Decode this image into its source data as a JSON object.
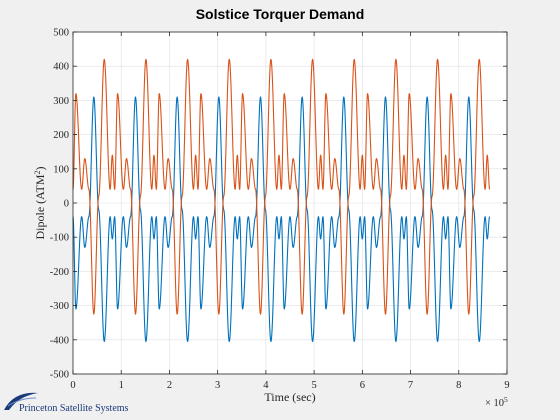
{
  "chart_data": {
    "type": "line",
    "title": "Solstice Torquer Demand",
    "xlabel": "Time (sec)",
    "ylabel_main": "Dipole (ATM",
    "ylabel_sup": "2",
    "ylabel_end": ")",
    "x_exponent_base": "× 10",
    "x_exponent_power": "5",
    "xlim": [
      0,
      9
    ],
    "ylim": [
      -500,
      500
    ],
    "x_ticks": [
      0,
      1,
      2,
      3,
      4,
      5,
      6,
      7,
      8,
      9
    ],
    "y_ticks": [
      -500,
      -400,
      -300,
      -200,
      -100,
      0,
      100,
      200,
      300,
      400,
      500
    ],
    "grid": true,
    "x_end": 8.64,
    "period": 0.864,
    "series": [
      {
        "color": "#0072bd",
        "keyframes": [
          {
            "t": 0.0,
            "v": -40
          },
          {
            "t": 0.06,
            "v": -310
          },
          {
            "t": 0.18,
            "v": -40
          },
          {
            "t": 0.245,
            "v": -130
          },
          {
            "t": 0.33,
            "v": -40
          },
          {
            "t": 0.432,
            "v": 310
          },
          {
            "t": 0.534,
            "v": -20
          },
          {
            "t": 0.648,
            "v": -405
          },
          {
            "t": 0.77,
            "v": -40
          },
          {
            "t": 0.815,
            "v": -105
          },
          {
            "t": 0.864,
            "v": -40
          }
        ]
      },
      {
        "color": "#d95319",
        "keyframes": [
          {
            "t": 0.0,
            "v": 40
          },
          {
            "t": 0.06,
            "v": 320
          },
          {
            "t": 0.18,
            "v": 40
          },
          {
            "t": 0.245,
            "v": 130
          },
          {
            "t": 0.33,
            "v": 40
          },
          {
            "t": 0.432,
            "v": -325
          },
          {
            "t": 0.534,
            "v": 20
          },
          {
            "t": 0.648,
            "v": 420
          },
          {
            "t": 0.77,
            "v": 40
          },
          {
            "t": 0.815,
            "v": 140
          },
          {
            "t": 0.864,
            "v": 40
          }
        ]
      }
    ]
  },
  "logo": {
    "text": "Princeton Satellite Systems"
  }
}
